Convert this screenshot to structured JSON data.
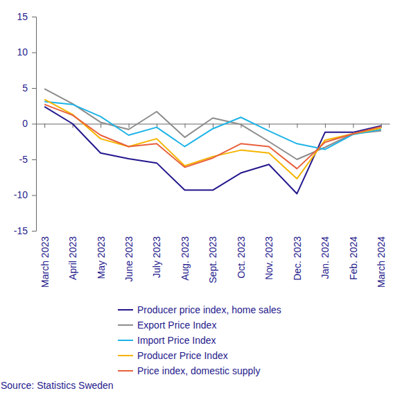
{
  "chart_data": {
    "type": "line",
    "categories": [
      "March 2023",
      "April 2023",
      "May 2023",
      "June 2023",
      "July 2023",
      "Aug. 2023",
      "Sept. 2023",
      "Oct. 2023",
      "Nov. 2023",
      "Dec. 2023",
      "Jan. 2024",
      "Feb. 2024",
      "March 2024"
    ],
    "series": [
      {
        "name": "Producer price index, home sales",
        "color": "#23178c",
        "values": [
          2.4,
          0,
          -4.1,
          -4.9,
          -5.5,
          -9.3,
          -9.3,
          -6.9,
          -5.7,
          -9.8,
          -1.2,
          -1.2,
          -0.3
        ]
      },
      {
        "name": "Export Price Index",
        "color": "#8c8c8c",
        "values": [
          4.9,
          2.8,
          0.2,
          -0.8,
          1.7,
          -1.9,
          0.8,
          -0.1,
          -2.5,
          -5.0,
          -3.3,
          -1.4,
          -1.0
        ]
      },
      {
        "name": "Import Price Index",
        "color": "#1eb4e6",
        "values": [
          3.1,
          2.7,
          1.0,
          -1.6,
          -0.5,
          -3.2,
          -0.7,
          0.9,
          -1.0,
          -2.8,
          -3.6,
          -1.5,
          -0.8
        ]
      },
      {
        "name": "Producer Price Index",
        "color": "#f5b400",
        "values": [
          3.4,
          1.3,
          -2.1,
          -3.2,
          -2.1,
          -5.9,
          -4.6,
          -3.7,
          -4.1,
          -7.7,
          -2.3,
          -1.4,
          -0.6
        ]
      },
      {
        "name": "Price index, domestic supply",
        "color": "#e8603c",
        "values": [
          2.7,
          1.2,
          -1.6,
          -3.2,
          -2.8,
          -6.1,
          -4.8,
          -2.8,
          -3.2,
          -6.3,
          -2.6,
          -1.4,
          -0.4
        ]
      }
    ],
    "ylim": [
      -15,
      15
    ],
    "yticks": [
      -15,
      -10,
      -5,
      0,
      5,
      10,
      15
    ],
    "grid": false,
    "legend": "bottom",
    "source": "Source: Statistics Sweden"
  }
}
